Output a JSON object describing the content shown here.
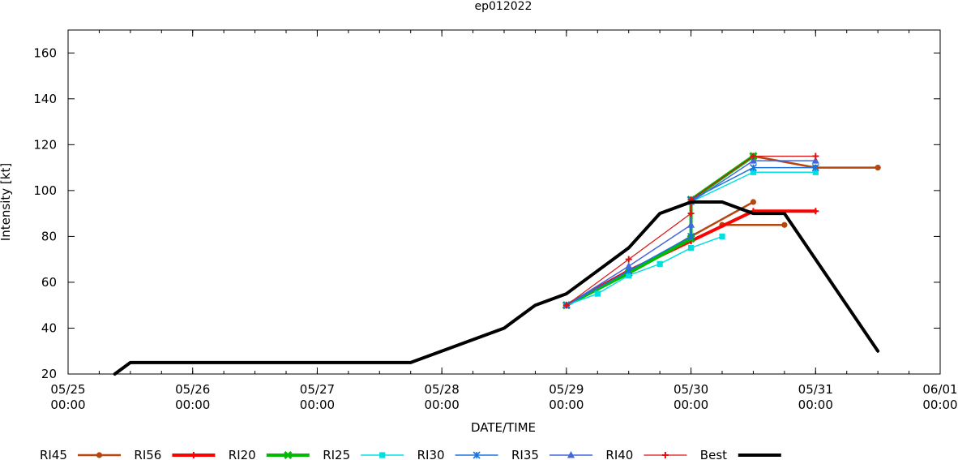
{
  "chart_data": {
    "type": "line",
    "title": "ep012022",
    "xlabel": "DATE/TIME",
    "ylabel": "Intensity [kt]",
    "xlim": [
      0,
      168
    ],
    "ylim": [
      20,
      170
    ],
    "y_ticks": [
      20,
      40,
      60,
      80,
      100,
      120,
      140,
      160
    ],
    "x_ticks": [
      {
        "t": 0,
        "date": "05/25",
        "time": "00:00"
      },
      {
        "t": 24,
        "date": "05/26",
        "time": "00:00"
      },
      {
        "t": 48,
        "date": "05/27",
        "time": "00:00"
      },
      {
        "t": 72,
        "date": "05/28",
        "time": "00:00"
      },
      {
        "t": 96,
        "date": "05/29",
        "time": "00:00"
      },
      {
        "t": 120,
        "date": "05/30",
        "time": "00:00"
      },
      {
        "t": 144,
        "date": "05/31",
        "time": "00:00"
      },
      {
        "t": 168,
        "date": "06/01",
        "time": "00:00"
      }
    ],
    "x_minor_step": 6,
    "x_unit": "hours since 05/25 00:00",
    "legend_position": "bottom",
    "series": [
      {
        "name": "RI45",
        "color": "#b5460f",
        "marker": "circle",
        "points": [
          [
            96,
            50
          ],
          [
            108,
            64
          ],
          [
            120,
            80
          ],
          [
            132,
            95
          ]
        ]
      },
      {
        "name": "RI45",
        "color": "#b5460f",
        "marker": "circle",
        "in_legend": false,
        "points": [
          [
            132,
            115
          ],
          [
            144,
            110
          ],
          [
            156,
            110
          ]
        ]
      },
      {
        "name": "RI45",
        "color": "#b5460f",
        "marker": "circle",
        "in_legend": false,
        "points": [
          [
            126,
            85
          ],
          [
            138,
            85
          ]
        ]
      },
      {
        "name": "RI56",
        "color": "#ff0000",
        "marker": "plus",
        "points": [
          [
            96,
            50
          ],
          [
            108,
            65
          ],
          [
            120,
            78
          ],
          [
            132,
            91
          ],
          [
            144,
            91
          ]
        ]
      },
      {
        "name": "RI20",
        "color": "#00bb00",
        "marker": "cross",
        "points": [
          [
            96,
            50
          ],
          [
            108,
            64
          ],
          [
            120,
            79
          ],
          [
            120,
            96
          ],
          [
            132,
            115
          ]
        ]
      },
      {
        "name": "RI25",
        "color": "#00e0e0",
        "marker": "square",
        "points": [
          [
            96,
            50
          ],
          [
            102,
            55
          ],
          [
            108,
            63
          ],
          [
            114,
            68
          ],
          [
            120,
            75
          ],
          [
            126,
            80
          ]
        ]
      },
      {
        "name": "RI25",
        "color": "#00e0e0",
        "marker": "square",
        "in_legend": false,
        "points": [
          [
            120,
            95
          ],
          [
            132,
            108
          ],
          [
            144,
            108
          ]
        ]
      },
      {
        "name": "RI30",
        "color": "#1874e0",
        "marker": "star",
        "points": [
          [
            96,
            50
          ],
          [
            108,
            65
          ],
          [
            120,
            80
          ],
          [
            120,
            96
          ],
          [
            132,
            110
          ],
          [
            144,
            110
          ]
        ]
      },
      {
        "name": "RI35",
        "color": "#4466dd",
        "marker": "triangle",
        "points": [
          [
            96,
            50
          ],
          [
            108,
            67
          ],
          [
            120,
            85
          ],
          [
            120,
            95
          ],
          [
            132,
            113
          ],
          [
            144,
            113
          ]
        ]
      },
      {
        "name": "RI40",
        "color": "#dd1111",
        "marker": "plus",
        "points": [
          [
            96,
            50
          ],
          [
            108,
            70
          ],
          [
            120,
            90
          ],
          [
            120,
            96
          ],
          [
            132,
            115
          ],
          [
            144,
            115
          ]
        ]
      },
      {
        "name": "Best",
        "color": "#000000",
        "marker": "none",
        "width": 4,
        "points": [
          [
            9,
            20
          ],
          [
            12,
            25
          ],
          [
            18,
            25
          ],
          [
            66,
            25
          ],
          [
            84,
            40
          ],
          [
            90,
            50
          ],
          [
            96,
            55
          ],
          [
            102,
            65
          ],
          [
            108,
            75
          ],
          [
            114,
            90
          ],
          [
            120,
            95
          ],
          [
            126,
            95
          ],
          [
            132,
            90
          ],
          [
            138,
            90
          ],
          [
            156,
            30
          ]
        ]
      }
    ],
    "legend": [
      {
        "label": "RI45",
        "color": "#b5460f",
        "marker": "circle",
        "width": 2.5
      },
      {
        "label": "RI56",
        "color": "#ff0000",
        "marker": "plus",
        "width": 4
      },
      {
        "label": "RI20",
        "color": "#00bb00",
        "marker": "cross",
        "width": 4
      },
      {
        "label": "RI25",
        "color": "#00e0e0",
        "marker": "square",
        "width": 1.5
      },
      {
        "label": "RI30",
        "color": "#1874e0",
        "marker": "star",
        "width": 1.5
      },
      {
        "label": "RI35",
        "color": "#4466dd",
        "marker": "triangle",
        "width": 1.5
      },
      {
        "label": "RI40",
        "color": "#dd1111",
        "marker": "plus",
        "width": 1.2
      },
      {
        "label": "Best",
        "color": "#000000",
        "marker": "none",
        "width": 4
      }
    ]
  }
}
